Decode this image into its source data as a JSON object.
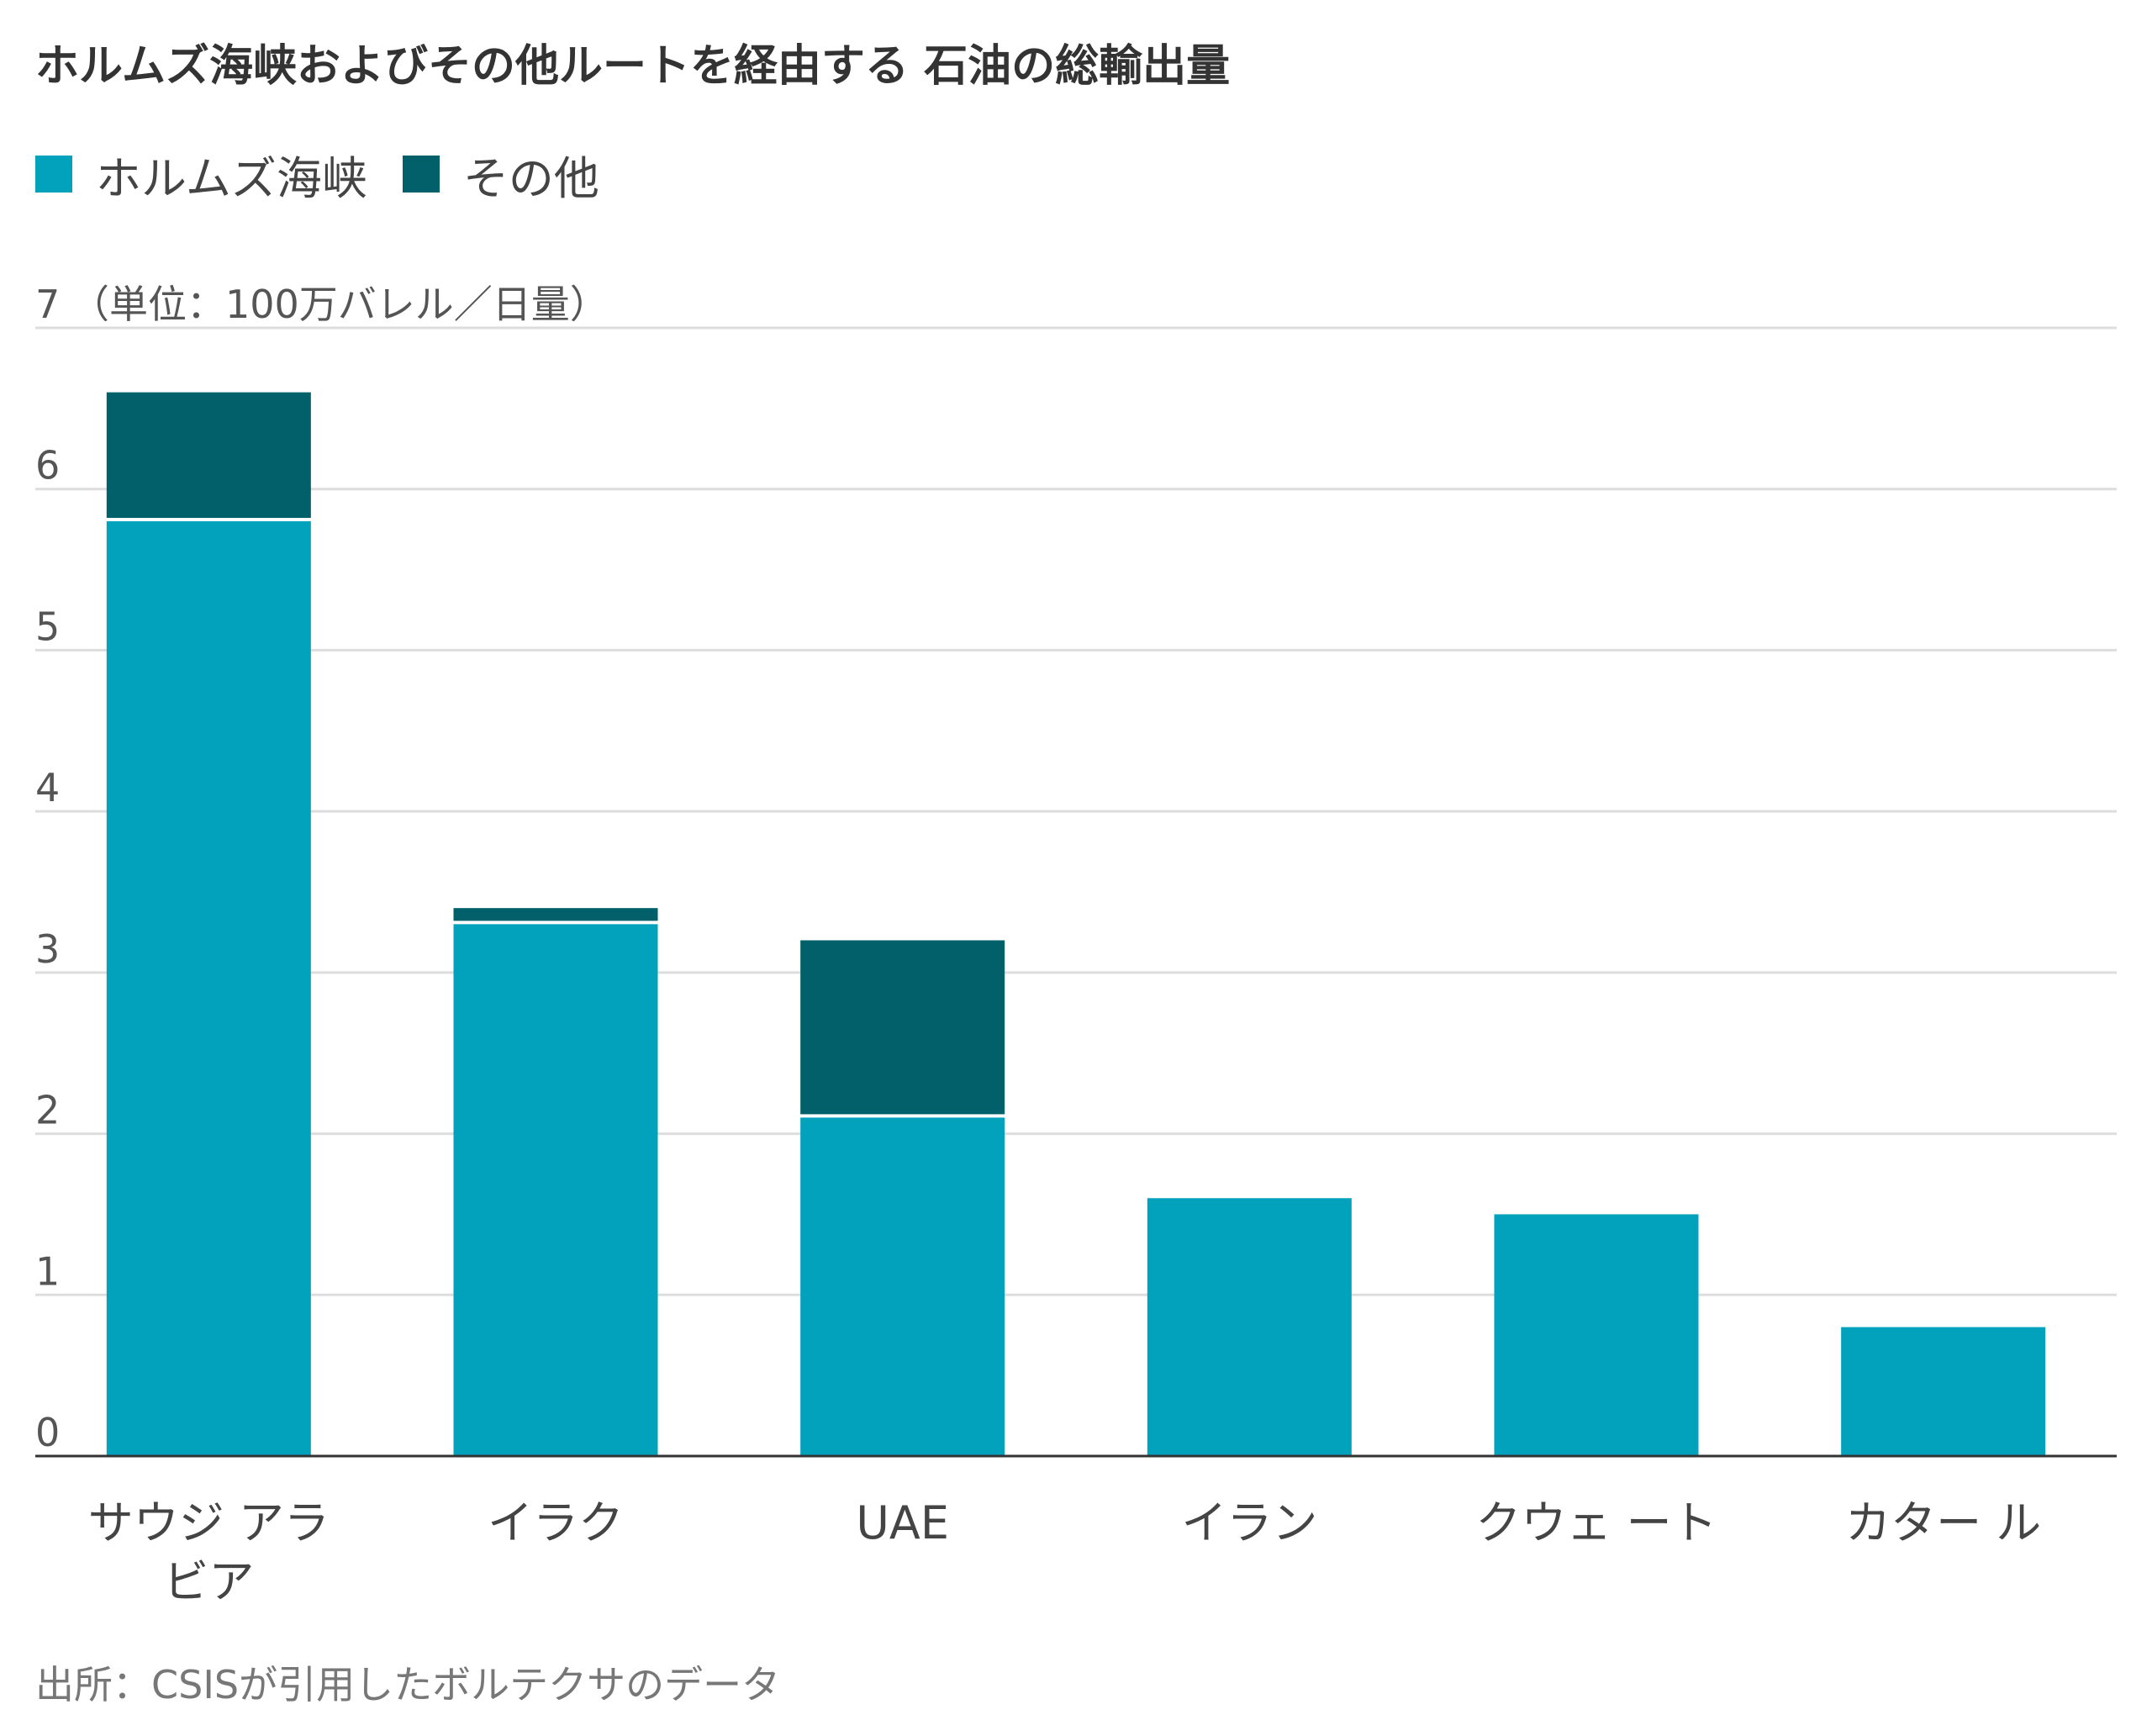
{
  "title": "ホルムズ海峡およびその他ルートを経由する 石油の総輸出量",
  "legend": [
    {
      "label": "ホルムズ海峡",
      "color": "#02a2bd"
    },
    {
      "label": "その他",
      "color": "#016069"
    }
  ],
  "source": "出所：CSISが引用したボルテクサのデータ",
  "chart_data": {
    "type": "bar",
    "stacked": true,
    "categories": [
      "サウジ アラ ビア",
      "イラク",
      "UAE",
      "イラン",
      "クウェ ート",
      "カター ル"
    ],
    "category_lines": [
      [
        "サウジ アラ",
        "ビア"
      ],
      [
        "イラク"
      ],
      [
        "UAE"
      ],
      [
        "イラン"
      ],
      [
        "クウェ ート"
      ],
      [
        "カター ル"
      ]
    ],
    "series": [
      {
        "name": "ホルムズ海峡",
        "color": "#02a2bd",
        "values": [
          5.8,
          3.3,
          2.1,
          1.6,
          1.5,
          0.8
        ]
      },
      {
        "name": "その他",
        "color": "#016069",
        "values": [
          0.8,
          0.1,
          1.1,
          0,
          0,
          0
        ]
      }
    ],
    "ylim": [
      0,
      7
    ],
    "yticks": [
      0,
      1,
      2,
      3,
      4,
      5,
      6,
      7
    ],
    "ylabel": "（単位：100万バレル／日量）",
    "grid": true,
    "colors": {
      "grid": "#dddddd",
      "axis": "#333333",
      "tick_text": "#555555"
    }
  }
}
